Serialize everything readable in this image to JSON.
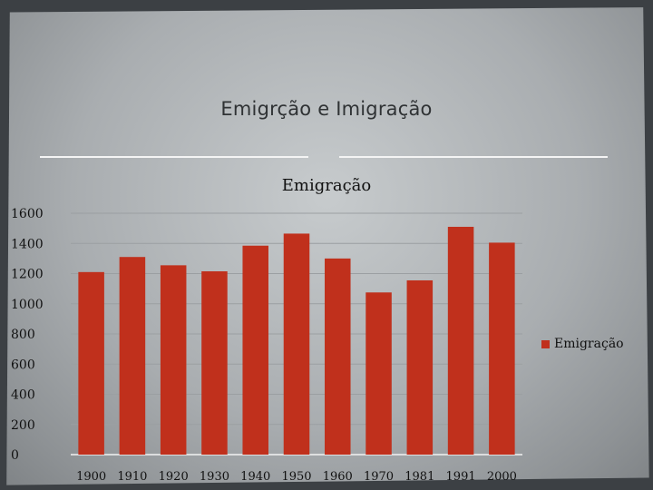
{
  "slide": {
    "title": "Emigrção e Imigração"
  },
  "chart_data": {
    "type": "bar",
    "title": "Emigração",
    "categories": [
      "1900",
      "1910",
      "1920",
      "1930",
      "1940",
      "1950",
      "1960",
      "1970",
      "1981",
      "1991",
      "2000"
    ],
    "series": [
      {
        "name": "Emigração",
        "values": [
          1210,
          1310,
          1255,
          1215,
          1385,
          1465,
          1300,
          1075,
          1155,
          1510,
          1405
        ],
        "color": "#c0301c"
      }
    ],
    "ylim": [
      0,
      1600
    ],
    "yticks": [
      "0",
      "200",
      "400",
      "600",
      "800",
      "1000",
      "1200",
      "1400",
      "1600"
    ],
    "grid": true,
    "legend_position": "right"
  }
}
